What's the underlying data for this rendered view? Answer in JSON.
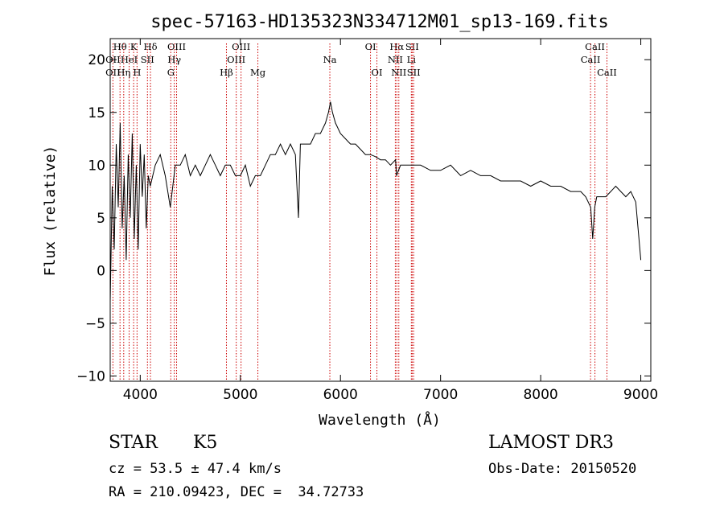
{
  "chart_data": {
    "type": "line",
    "title": "spec-57163-HD135323N334712M01_sp13-169.fits",
    "xlabel": "Wavelength (Å)",
    "ylabel": "Flux (relative)",
    "xlim": [
      3700,
      9100
    ],
    "ylim": [
      -10.5,
      22
    ],
    "xticks": [
      4000,
      5000,
      6000,
      7000,
      8000,
      9000
    ],
    "yticks": [
      -10,
      -5,
      0,
      5,
      10,
      15,
      20
    ],
    "grid": false,
    "series": [
      {
        "name": "flux",
        "x": [
          3700,
          3720,
          3740,
          3760,
          3780,
          3800,
          3820,
          3840,
          3860,
          3880,
          3900,
          3920,
          3940,
          3960,
          3980,
          4000,
          4020,
          4040,
          4060,
          4080,
          4100,
          4150,
          4200,
          4250,
          4300,
          4350,
          4400,
          4450,
          4500,
          4550,
          4600,
          4650,
          4700,
          4750,
          4800,
          4850,
          4900,
          4950,
          5000,
          5050,
          5100,
          5150,
          5200,
          5250,
          5300,
          5350,
          5400,
          5450,
          5500,
          5550,
          5580,
          5600,
          5650,
          5700,
          5750,
          5800,
          5850,
          5880,
          5900,
          5920,
          5950,
          6000,
          6050,
          6100,
          6150,
          6200,
          6250,
          6300,
          6350,
          6400,
          6450,
          6500,
          6550,
          6560,
          6600,
          6650,
          6700,
          6750,
          6800,
          6900,
          7000,
          7100,
          7200,
          7300,
          7400,
          7500,
          7600,
          7700,
          7800,
          7900,
          8000,
          8100,
          8200,
          8300,
          8400,
          8450,
          8500,
          8520,
          8540,
          8560,
          8600,
          8650,
          8700,
          8750,
          8800,
          8850,
          8900,
          8950,
          9000
        ],
        "values": [
          -3,
          8,
          2,
          12,
          6,
          14,
          4,
          9,
          1,
          11,
          5,
          13,
          3,
          10,
          2,
          12,
          7,
          11,
          4,
          9,
          8,
          10,
          11,
          9,
          6,
          10,
          10,
          11,
          9,
          10,
          9,
          10,
          11,
          10,
          9,
          10,
          10,
          9,
          9,
          10,
          8,
          9,
          9,
          10,
          11,
          11,
          12,
          11,
          12,
          11,
          5,
          12,
          12,
          12,
          13,
          13,
          14,
          15,
          16,
          15,
          14,
          13,
          12.5,
          12,
          12,
          11.5,
          11,
          11,
          10.8,
          10.5,
          10.5,
          10,
          10.5,
          9,
          10,
          10,
          10,
          10,
          10,
          9.5,
          9.5,
          10,
          9,
          9.5,
          9,
          9,
          8.5,
          8.5,
          8.5,
          8,
          8.5,
          8,
          8,
          7.5,
          7.5,
          7,
          6,
          3,
          6,
          7,
          7,
          7,
          7.5,
          8,
          7.5,
          7,
          7.5,
          6.5,
          1
        ]
      }
    ],
    "line_colors": {
      "spectrum": "#000000",
      "marker": "#cc0000"
    },
    "line_markers": [
      {
        "label": "Hθ",
        "wavelength": 3798,
        "row": 1
      },
      {
        "label": "OII",
        "wavelength": 3727,
        "row": 2
      },
      {
        "label": "OII",
        "wavelength": 3727,
        "row": 3
      },
      {
        "label": "HeI",
        "wavelength": 3889,
        "row": 2
      },
      {
        "label": "Hη",
        "wavelength": 3835,
        "row": 3
      },
      {
        "label": "K",
        "wavelength": 3934,
        "row": 1
      },
      {
        "label": "SII",
        "wavelength": 4072,
        "row": 2
      },
      {
        "label": "H",
        "wavelength": 3968,
        "row": 3
      },
      {
        "label": "Hδ",
        "wavelength": 4102,
        "row": 1
      },
      {
        "label": "OIII",
        "wavelength": 4363,
        "row": 1
      },
      {
        "label": "Hγ",
        "wavelength": 4340,
        "row": 2
      },
      {
        "label": "G",
        "wavelength": 4305,
        "row": 3
      },
      {
        "label": "Hβ",
        "wavelength": 4861,
        "row": 3
      },
      {
        "label": "OIII",
        "wavelength": 5007,
        "row": 1
      },
      {
        "label": "OIII",
        "wavelength": 4959,
        "row": 2
      },
      {
        "label": "Mg",
        "wavelength": 5175,
        "row": 3
      },
      {
        "label": "Na",
        "wavelength": 5894,
        "row": 2
      },
      {
        "label": "OI",
        "wavelength": 6300,
        "row": 1
      },
      {
        "label": "OI",
        "wavelength": 6364,
        "row": 3
      },
      {
        "label": "Hα",
        "wavelength": 6563,
        "row": 1
      },
      {
        "label": "NII",
        "wavelength": 6548,
        "row": 2
      },
      {
        "label": "NII",
        "wavelength": 6583,
        "row": 3
      },
      {
        "label": "SII",
        "wavelength": 6716,
        "row": 1
      },
      {
        "label": "Li",
        "wavelength": 6708,
        "row": 2
      },
      {
        "label": "SII",
        "wavelength": 6731,
        "row": 3
      },
      {
        "label": "CaII",
        "wavelength": 8542,
        "row": 1
      },
      {
        "label": "CaII",
        "wavelength": 8498,
        "row": 2
      },
      {
        "label": "CaII",
        "wavelength": 8662,
        "row": 3
      }
    ]
  },
  "info": {
    "obj_class": "STAR",
    "subclass": "K5",
    "survey": "LAMOST DR3",
    "cz": "cz = 53.5 ± 47.4 km/s",
    "obs_date": "Obs-Date: 20150520",
    "radec": "RA = 210.09423, DEC =  34.72733"
  }
}
